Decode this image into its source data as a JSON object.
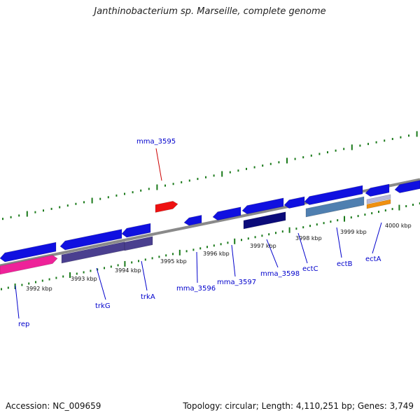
{
  "title": "Janthinobacterium sp. Marseille, complete genome",
  "footer": {
    "accession": "Accession: NC_009659",
    "summary": "Topology: circular; Length: 4,110,251 bp; Genes: 3,749"
  },
  "colors": {
    "backbone": "#8a8a8a",
    "ticks": "#1a7a1a",
    "gene_blue": "#1010e0",
    "highlight_red": "#ee1111",
    "label_blue": "#0000cc",
    "label_red": "#cc0000",
    "pink": "#ee2299",
    "slate": "#4a3f8f",
    "navy": "#0b0b7a",
    "steel": "#4f7fb0",
    "orange": "#f0900f",
    "lavender": "#b8b8d8"
  },
  "ticks": [
    "3992 kbp",
    "3993 kbp",
    "3994 kbp",
    "3995 kbp",
    "3996 kbp",
    "3997 kbp",
    "3998 kbp",
    "3999 kbp",
    "4000 kbp"
  ],
  "genes": [
    {
      "label": "rep",
      "color": "label_blue"
    },
    {
      "label": "trkG",
      "color": "label_blue"
    },
    {
      "label": "trkA",
      "color": "label_blue"
    },
    {
      "label": "mma_3595",
      "color": "label_red"
    },
    {
      "label": "mma_3596",
      "color": "label_blue"
    },
    {
      "label": "mma_3597",
      "color": "label_blue"
    },
    {
      "label": "mma_3598",
      "color": "label_blue"
    },
    {
      "label": "ectC",
      "color": "label_blue"
    },
    {
      "label": "ectB",
      "color": "label_blue"
    },
    {
      "label": "ectA",
      "color": "label_blue"
    }
  ]
}
